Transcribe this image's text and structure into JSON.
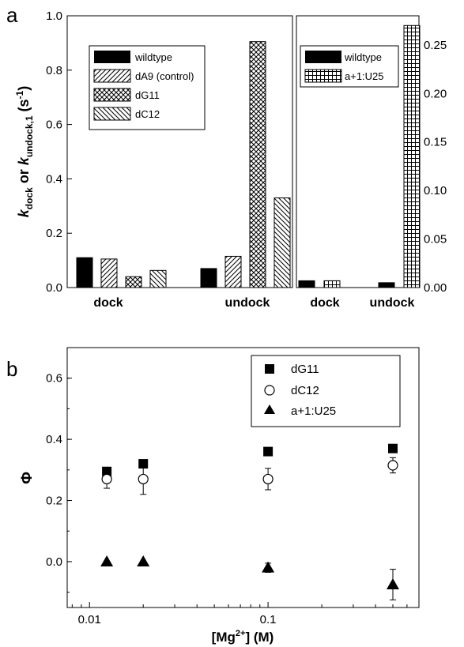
{
  "panels": {
    "a": "a",
    "b": "b"
  },
  "chart_data": [
    {
      "type": "bar",
      "panel": "a-left",
      "categories": [
        "dock",
        "undock"
      ],
      "ylabel_parts": {
        "k1": "k",
        "s1": "dock",
        "mid": " or ",
        "k2": "k",
        "s2": "undock,1",
        "unit_open": " (s",
        "unit_exp": "-1",
        "unit_close": ")"
      },
      "ylim": [
        0,
        1.0
      ],
      "yticks": [
        "0.0",
        "0.2",
        "0.4",
        "0.6",
        "0.8",
        "1.0"
      ],
      "series": [
        {
          "name": "wildtype",
          "values": [
            0.11,
            0.07
          ]
        },
        {
          "name": "dA9 (control)",
          "values": [
            0.105,
            0.115
          ]
        },
        {
          "name": "dG11",
          "values": [
            0.04,
            0.905
          ]
        },
        {
          "name": "dC12",
          "values": [
            0.063,
            0.33
          ]
        }
      ]
    },
    {
      "type": "bar",
      "panel": "a-right",
      "categories": [
        "dock",
        "undock"
      ],
      "ylim": [
        0,
        0.28
      ],
      "yticks": [
        "0.00",
        "0.05",
        "0.10",
        "0.15",
        "0.20",
        "0.25"
      ],
      "series": [
        {
          "name": "wildtype",
          "values": [
            0.007,
            0.005
          ]
        },
        {
          "name": "a+1:U25",
          "values": [
            0.007,
            0.27
          ]
        }
      ]
    },
    {
      "type": "scatter",
      "panel": "b",
      "xscale": "log",
      "xlim": [
        0.0075,
        0.7
      ],
      "ylim": [
        -0.15,
        0.7
      ],
      "xticks": [
        "0.01",
        "0.1"
      ],
      "yticks": [
        "0.0",
        "0.2",
        "0.4",
        "0.6"
      ],
      "xlabel_parts": {
        "open": "[Mg",
        "sup": "2+",
        "close": "] (M)"
      },
      "ylabel": "Φ",
      "legend_position": "top-right",
      "series": [
        {
          "name": "dG11",
          "marker": "filled-square",
          "x": [
            0.0125,
            0.02,
            0.1,
            0.5
          ],
          "y": [
            0.295,
            0.32,
            0.36,
            0.37
          ],
          "err": [
            0,
            0,
            0,
            0
          ]
        },
        {
          "name": "dC12",
          "marker": "open-circle",
          "x": [
            0.0125,
            0.02,
            0.1,
            0.5
          ],
          "y": [
            0.27,
            0.27,
            0.27,
            0.315
          ],
          "err": [
            0.03,
            0.05,
            0.035,
            0.025
          ]
        },
        {
          "name": "a+1:U25",
          "marker": "filled-triangle",
          "x": [
            0.0125,
            0.02,
            0.1,
            0.5
          ],
          "y": [
            0.0,
            0.0,
            -0.02,
            -0.075
          ],
          "err": [
            0,
            0,
            0.015,
            0.05
          ]
        }
      ]
    }
  ]
}
